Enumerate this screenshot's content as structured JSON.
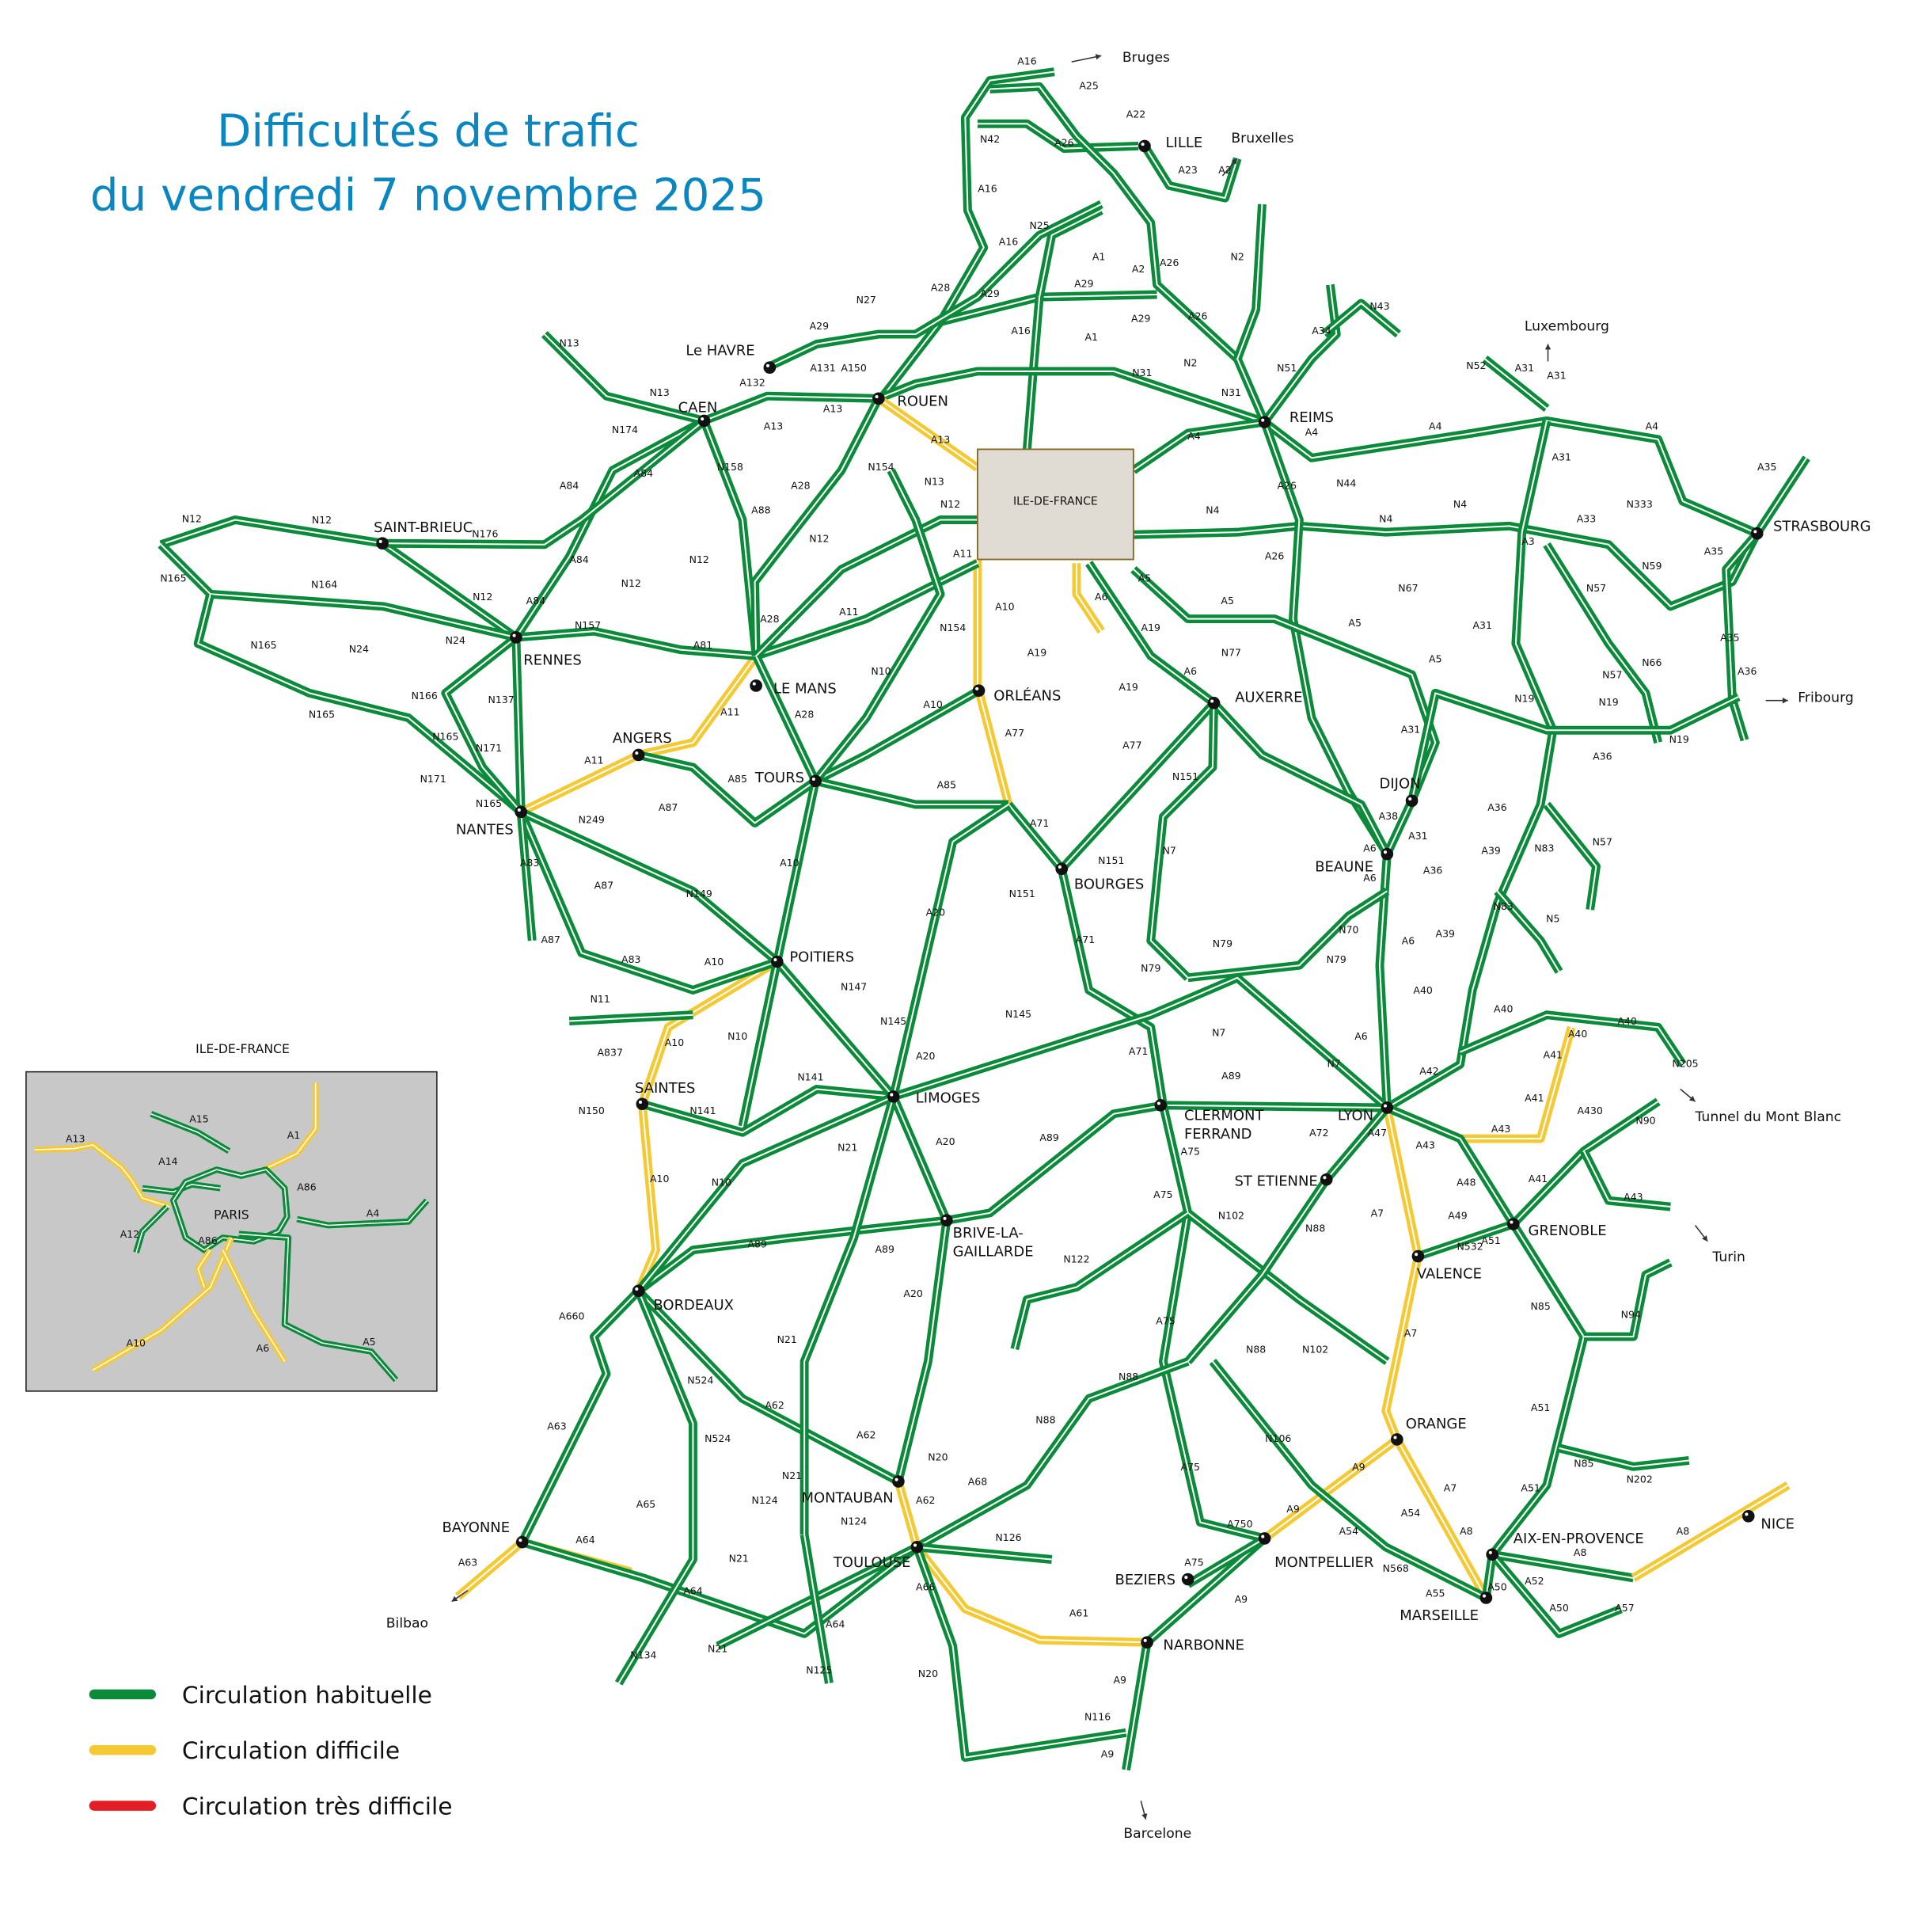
{
  "title": {
    "line1": "Difficultés de trafic",
    "line2": "du vendredi 7 novembre 2025"
  },
  "colors": {
    "title": "#0a86c0",
    "normal": "#0b8a3a",
    "difficult": "#f5c933",
    "very_difficult": "#e31e24",
    "paris_box": "#e0dcd4",
    "inset_bg": "#c8c8c8"
  },
  "legend": [
    {
      "label": "Circulation habituelle",
      "status": "normal"
    },
    {
      "label": "Circulation difficile",
      "status": "difficult"
    },
    {
      "label": "Circulation très difficile",
      "status": "very_difficult"
    }
  ],
  "paris_box_label": "ILE-DE-FRANCE",
  "inset": {
    "title": "ILE-DE-FRANCE",
    "center_label": "PARIS",
    "road_labels": [
      "A13",
      "A15",
      "A14",
      "A1",
      "A86",
      "A12",
      "A86",
      "A4",
      "A10",
      "A6",
      "A5"
    ]
  },
  "cities": [
    [
      "LILLE"
    ],
    [
      "REIMS"
    ],
    [
      "ROUEN"
    ],
    [
      "Le HAVRE"
    ],
    [
      "CAEN"
    ],
    [
      "SAINT-BRIEUC"
    ],
    [
      "RENNES"
    ],
    [
      "LE MANS"
    ],
    [
      "ANGERS"
    ],
    [
      "NANTES"
    ],
    [
      "TOURS"
    ],
    [
      "ORLÉANS"
    ],
    [
      "AUXERRE"
    ],
    [
      "DIJON"
    ],
    [
      "BEAUNE"
    ],
    [
      "BOURGES"
    ],
    [
      "POITIERS"
    ],
    [
      "LIMOGES"
    ],
    [
      "SAINTES"
    ],
    [
      "CLERMONT",
      "FERRAND"
    ],
    [
      "LYON"
    ],
    [
      "ST ETIENNE"
    ],
    [
      "GRENOBLE"
    ],
    [
      "VALENCE"
    ],
    [
      "BRIVE-LA-",
      "GAILLARDE"
    ],
    [
      "BORDEAUX"
    ],
    [
      "MONTAUBAN"
    ],
    [
      "TOULOUSE"
    ],
    [
      "BAYONNE"
    ],
    [
      "NARBONNE"
    ],
    [
      "BEZIERS"
    ],
    [
      "MONTPELLIER"
    ],
    [
      "ORANGE"
    ],
    [
      "AIX-EN-PROVENCE"
    ],
    [
      "MARSEILLE"
    ],
    [
      "NICE"
    ],
    [
      "STRASBOURG"
    ]
  ],
  "destinations": [
    "Bruges",
    "Bruxelles",
    "Luxembourg",
    "Fribourg",
    "Tunnel du Mont Blanc",
    "Turin",
    "Barcelone",
    "Bilbao"
  ],
  "road_labels": [
    "A16",
    "A25",
    "A22",
    "N42",
    "A26",
    "A23",
    "A2",
    "A16",
    "A16",
    "N25",
    "A1",
    "A2",
    "A26",
    "N2",
    "A28",
    "A29",
    "A29",
    "A29",
    "A26",
    "A29",
    "N27",
    "A16",
    "A1",
    "N31",
    "N2",
    "N31",
    "N51",
    "N43",
    "A34",
    "A13",
    "A13",
    "A131",
    "A150",
    "A132",
    "N13",
    "N13",
    "N174",
    "A84",
    "A84",
    "A84",
    "N158",
    "A88",
    "A28",
    "N154",
    "A13",
    "N13",
    "N12",
    "N12",
    "N12",
    "N12",
    "N12",
    "A84",
    "N176",
    "N12",
    "N12",
    "N164",
    "N165",
    "N165",
    "N24",
    "N24",
    "N166",
    "N165",
    "N165",
    "N171",
    "N171",
    "N137",
    "N157",
    "A81",
    "A11",
    "A11",
    "N154",
    "A10",
    "A28",
    "A19",
    "A19",
    "A19",
    "A6",
    "A5",
    "A5",
    "A5",
    "A6",
    "N77",
    "A26",
    "A26",
    "N4",
    "N4",
    "N4",
    "A4",
    "A4",
    "A4",
    "A4",
    "N44",
    "N67",
    "A5",
    "A31",
    "A31",
    "A31",
    "A31",
    "A31",
    "N52",
    "A33",
    "N333",
    "A3",
    "N59",
    "N57",
    "A35",
    "A35",
    "A35",
    "A36",
    "N66",
    "N57",
    "N19",
    "N19",
    "N19",
    "A36",
    "A36",
    "N83",
    "N57",
    "A39",
    "A36",
    "A31",
    "A38",
    "A6",
    "A6",
    "N83",
    "N5",
    "A39",
    "A6",
    "N70",
    "N79",
    "A40",
    "A40",
    "A6",
    "A40",
    "A40",
    "N205",
    "A41",
    "A41",
    "N79",
    "N79",
    "N7",
    "N7",
    "N7",
    "A71",
    "A71",
    "A71",
    "A77",
    "A77",
    "N151",
    "N151",
    "N151",
    "A10",
    "N10",
    "A28",
    "A85",
    "A85",
    "A11",
    "A11",
    "A87",
    "A87",
    "A87",
    "N249",
    "A83",
    "N165",
    "N149",
    "A83",
    "A10",
    "A10",
    "A20",
    "N147",
    "N145",
    "N145",
    "A20",
    "N11",
    "A837",
    "A10",
    "N10",
    "N141",
    "N141",
    "N150",
    "A10",
    "N10",
    "N21",
    "A20",
    "A89",
    "A89",
    "A75",
    "A72",
    "A47",
    "A42",
    "A43",
    "A43",
    "A430",
    "N90",
    "A43",
    "A48",
    "A41",
    "A49",
    "N532",
    "A51",
    "A7",
    "A75",
    "N102",
    "N88",
    "N122",
    "A89",
    "A89",
    "N85",
    "N94",
    "A20",
    "N21",
    "A660",
    "N524",
    "A62",
    "A62",
    "A63",
    "N524",
    "N21",
    "A75",
    "N88",
    "N88",
    "N102",
    "N88",
    "A7",
    "N106",
    "A75",
    "A51",
    "N85",
    "N202",
    "A9",
    "A7",
    "A51",
    "A54",
    "A8",
    "A8",
    "A8",
    "N20",
    "A62",
    "A68",
    "N124",
    "N124",
    "N126",
    "A65",
    "A64",
    "A63",
    "A64",
    "N21",
    "A64",
    "A66",
    "A61",
    "A750",
    "A9",
    "A54",
    "N568",
    "A55",
    "A50",
    "A52",
    "A50",
    "A57",
    "A75",
    "A9",
    "N134",
    "N21",
    "N125",
    "N20",
    "A9",
    "N116",
    "A9"
  ]
}
